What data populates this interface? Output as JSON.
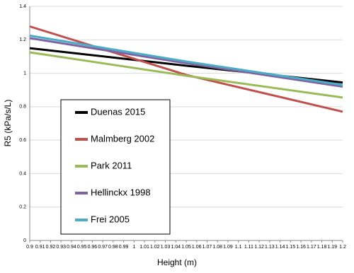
{
  "chart_data": {
    "type": "line",
    "x_label": "Height (m)",
    "y_label": "R5 (kPa/s/L)",
    "x": [
      0.9,
      1.05,
      1.2
    ],
    "series": [
      {
        "name": "Duenas 2015",
        "color": "#000000",
        "values": [
          1.15,
          1.045,
          0.945
        ]
      },
      {
        "name": "Malmberg 2002",
        "color": "#c0504d",
        "values": [
          1.28,
          0.99,
          0.77
        ]
      },
      {
        "name": "Park 2011",
        "color": "#9bbb59",
        "values": [
          1.125,
          0.985,
          0.855
        ]
      },
      {
        "name": "Hellinckx 1998",
        "color": "#8064a2",
        "values": [
          1.21,
          1.06,
          0.92
        ]
      },
      {
        "name": "Frei 2005",
        "color": "#4bacc6",
        "values": [
          1.225,
          1.07,
          0.93
        ]
      }
    ],
    "xlim": [
      0.9,
      1.2
    ],
    "xticks": [
      0.9,
      0.91,
      0.92,
      0.93,
      0.94,
      0.95,
      0.96,
      0.97,
      0.98,
      0.99,
      1,
      1.01,
      1.02,
      1.03,
      1.04,
      1.05,
      1.06,
      1.07,
      1.08,
      1.09,
      1.1,
      1.11,
      1.12,
      1.13,
      1.14,
      1.15,
      1.16,
      1.17,
      1.18,
      1.19,
      1.2
    ],
    "ylim": [
      0,
      1.4
    ],
    "yticks": [
      0,
      0.2,
      0.4,
      0.6,
      0.8,
      1,
      1.2,
      1.4
    ],
    "grid": true,
    "legend": "left"
  }
}
